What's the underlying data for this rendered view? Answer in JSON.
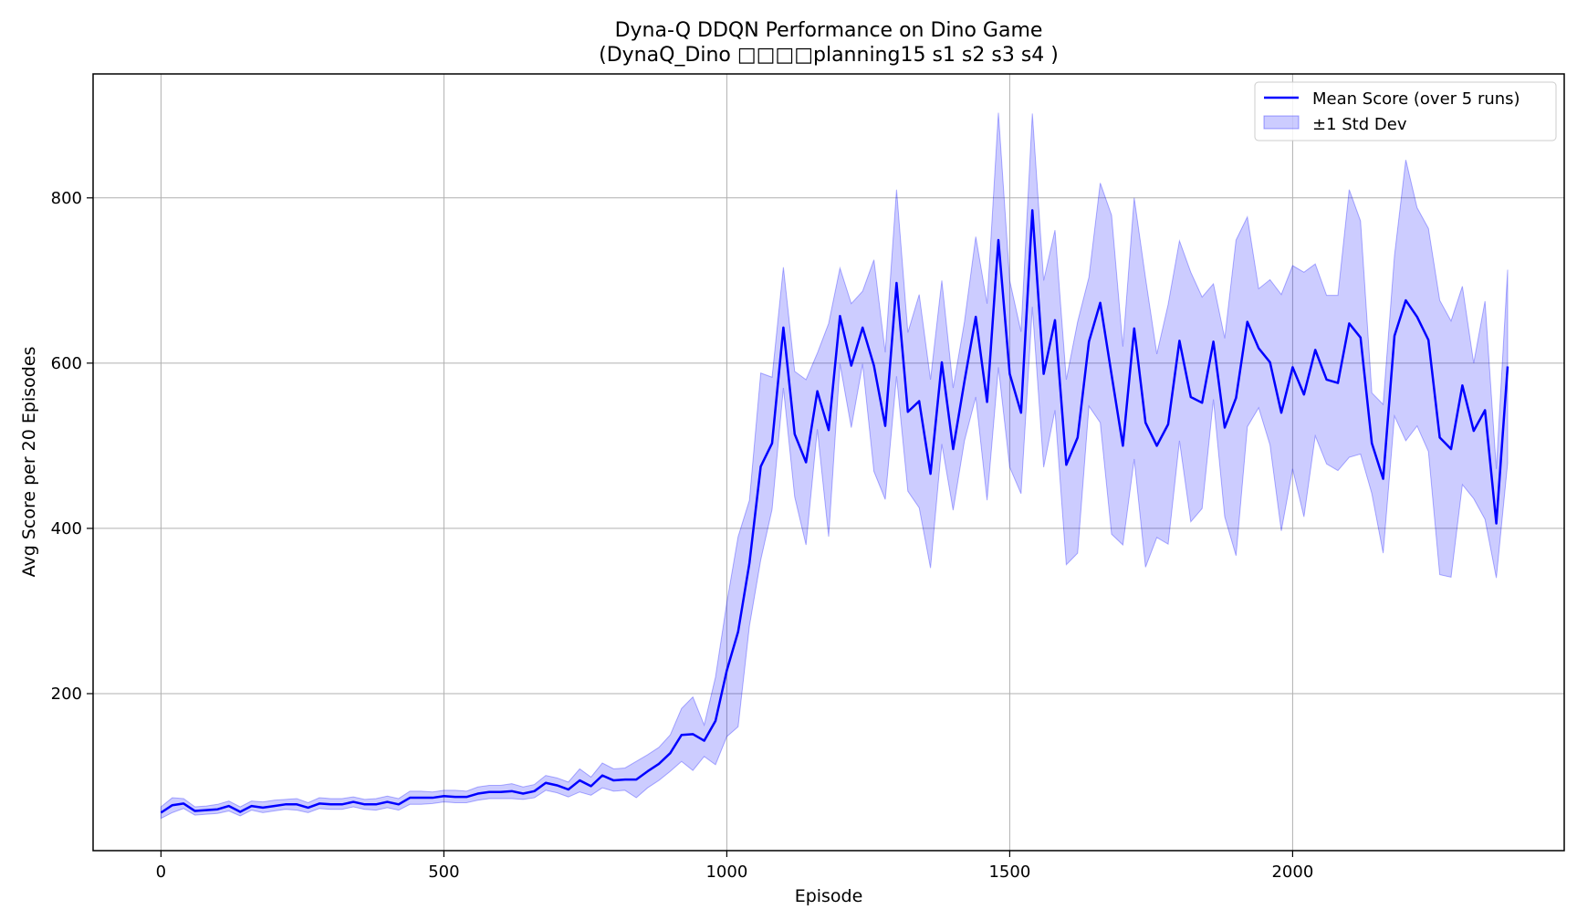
{
  "chart_data": {
    "type": "line",
    "title": "Dyna-Q DDQN Performance on Dino Game",
    "subtitle": "(DynaQ_Dino □□□□planning15 s1 s2 s3 s4 )",
    "xlabel": "Episode",
    "ylabel": "Avg Score per 20 Episodes",
    "xlim": [
      -120,
      2480
    ],
    "ylim": [
      10,
      950
    ],
    "xticks": [
      0,
      500,
      1000,
      1500,
      2000
    ],
    "yticks": [
      200,
      400,
      600,
      800
    ],
    "xtick_labels": [
      "0",
      "500",
      "1000",
      "1500",
      "2000"
    ],
    "ytick_labels": [
      "200",
      "400",
      "600",
      "800"
    ],
    "grid": true,
    "legend_position": "top-right",
    "legend": [
      "Mean Score (over 5 runs)",
      "±1 Std Dev"
    ],
    "colors": {
      "mean": "#0000ff",
      "band": "#0000ff"
    },
    "x": [
      0,
      20,
      40,
      60,
      80,
      100,
      120,
      140,
      160,
      180,
      200,
      220,
      240,
      260,
      280,
      300,
      320,
      340,
      360,
      380,
      400,
      420,
      440,
      460,
      480,
      500,
      520,
      540,
      560,
      580,
      600,
      620,
      640,
      660,
      680,
      700,
      720,
      740,
      760,
      780,
      800,
      820,
      840,
      860,
      880,
      900,
      920,
      940,
      960,
      980,
      1000,
      1020,
      1040,
      1060,
      1080,
      1100,
      1120,
      1140,
      1160,
      1180,
      1200,
      1220,
      1240,
      1260,
      1280,
      1300,
      1320,
      1340,
      1360,
      1380,
      1400,
      1420,
      1440,
      1460,
      1480,
      1500,
      1520,
      1540,
      1560,
      1580,
      1600,
      1620,
      1640,
      1660,
      1680,
      1700,
      1720,
      1740,
      1760,
      1780,
      1800,
      1820,
      1840,
      1860,
      1880,
      1900,
      1920,
      1940,
      1960,
      1980,
      2000,
      2020,
      2040,
      2060,
      2080,
      2100,
      2120,
      2140,
      2160,
      2180,
      2200,
      2220,
      2240,
      2260,
      2280,
      2300,
      2320,
      2340,
      2360,
      2380
    ],
    "series": [
      {
        "name": "Mean Score (over 5 runs)",
        "values": [
          56,
          65,
          67,
          58,
          59,
          60,
          64,
          57,
          64,
          62,
          64,
          66,
          66,
          62,
          67,
          66,
          66,
          69,
          66,
          66,
          69,
          66,
          74,
          74,
          74,
          76,
          75,
          75,
          79,
          81,
          81,
          82,
          79,
          82,
          92,
          89,
          84,
          95,
          88,
          101,
          95,
          96,
          96,
          106,
          115,
          128,
          150,
          151,
          143,
          167,
          228,
          275,
          358,
          475,
          503,
          643,
          514,
          480,
          566,
          519,
          657,
          597,
          643,
          597,
          524,
          697,
          541,
          554,
          466,
          601,
          496,
          578,
          656,
          553,
          749,
          587,
          540,
          785,
          587,
          652,
          477,
          510,
          626,
          673,
          586,
          500,
          642,
          528,
          500,
          526,
          627,
          559,
          552,
          626,
          522,
          558,
          650,
          618,
          601,
          540,
          595,
          562,
          616,
          580,
          576,
          648,
          631,
          503,
          460,
          633,
          676,
          656,
          628,
          510,
          496,
          573,
          518,
          543,
          406,
          596
        ]
      }
    ],
    "band_upper": [
      63,
      74,
      73,
      63,
      64,
      66,
      70,
      63,
      70,
      69,
      71,
      72,
      73,
      68,
      74,
      73,
      73,
      75,
      72,
      73,
      76,
      73,
      82,
      82,
      81,
      83,
      83,
      82,
      87,
      89,
      89,
      91,
      87,
      90,
      101,
      98,
      93,
      109,
      99,
      116,
      109,
      110,
      118,
      126,
      135,
      150,
      182,
      196,
      162,
      220,
      310,
      390,
      434,
      588,
      583,
      716,
      590,
      580,
      612,
      648,
      715,
      672,
      687,
      725,
      613,
      810,
      637,
      683,
      580,
      700,
      570,
      650,
      753,
      672,
      903,
      700,
      638,
      902,
      700,
      761,
      580,
      650,
      704,
      818,
      779,
      620,
      800,
      703,
      611,
      671,
      748,
      710,
      680,
      696,
      630,
      749,
      777,
      690,
      701,
      683,
      718,
      710,
      720,
      682,
      682,
      810,
      772,
      564,
      550,
      730,
      846,
      788,
      763,
      676,
      651,
      693,
      600,
      675,
      472,
      713
    ],
    "band_lower": [
      49,
      56,
      61,
      53,
      54,
      55,
      58,
      52,
      59,
      56,
      58,
      60,
      59,
      56,
      61,
      60,
      60,
      63,
      60,
      59,
      62,
      59,
      66,
      66,
      67,
      69,
      68,
      68,
      71,
      73,
      73,
      73,
      72,
      74,
      83,
      80,
      75,
      81,
      77,
      86,
      82,
      83,
      74,
      86,
      95,
      106,
      118,
      107,
      124,
      114,
      148,
      160,
      282,
      362,
      423,
      570,
      438,
      380,
      520,
      390,
      599,
      522,
      599,
      469,
      435,
      584,
      445,
      425,
      352,
      502,
      422,
      506,
      559,
      434,
      595,
      474,
      442,
      668,
      474,
      543,
      356,
      370,
      548,
      528,
      393,
      380,
      484,
      353,
      389,
      381,
      506,
      408,
      424,
      556,
      414,
      367,
      523,
      546,
      501,
      397,
      472,
      414,
      512,
      478,
      470,
      486,
      490,
      442,
      370,
      536,
      506,
      524,
      493,
      344,
      341,
      453,
      436,
      411,
      340,
      479
    ]
  }
}
